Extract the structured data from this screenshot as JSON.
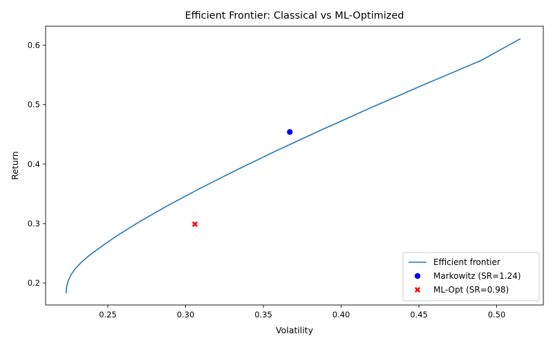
{
  "chart_data": {
    "type": "line",
    "title": "Efficient Frontier: Classical vs ML-Optimized",
    "xlabel": "Volatility",
    "ylabel": "Return",
    "xlim": [
      0.21,
      0.53
    ],
    "ylim": [
      0.163,
      0.632
    ],
    "xticks": [
      0.25,
      0.3,
      0.35,
      0.4,
      0.45,
      0.5
    ],
    "yticks": [
      0.2,
      0.3,
      0.4,
      0.5,
      0.6
    ],
    "grid": false,
    "legend_position": "lower right",
    "series": [
      {
        "name": "Efficient frontier",
        "type": "line",
        "color": "#1f77b4",
        "x": [
          0.2231,
          0.2236,
          0.2247,
          0.2266,
          0.2294,
          0.233,
          0.2374,
          0.2425,
          0.2484,
          0.255,
          0.2623,
          0.2703,
          0.279,
          0.2884,
          0.2984,
          0.3092,
          0.3206,
          0.3326,
          0.3454,
          0.3588,
          0.3729,
          0.3877,
          0.4031,
          0.4192,
          0.436,
          0.4535,
          0.4716,
          0.4905,
          0.5153
        ],
        "y": [
          0.183,
          0.195,
          0.205,
          0.215,
          0.225,
          0.235,
          0.245,
          0.255,
          0.266,
          0.278,
          0.29,
          0.303,
          0.316,
          0.33,
          0.344,
          0.359,
          0.374,
          0.39,
          0.406,
          0.423,
          0.44,
          0.458,
          0.476,
          0.495,
          0.514,
          0.534,
          0.554,
          0.575,
          0.611
        ]
      },
      {
        "name": "Markowitz (SR=1.24)",
        "type": "scatter",
        "marker": "circle",
        "color": "#0000ff",
        "x": [
          0.367
        ],
        "y": [
          0.454
        ]
      },
      {
        "name": "ML-Opt (SR=0.98)",
        "type": "scatter",
        "marker": "x",
        "color": "#ff0000",
        "x": [
          0.306
        ],
        "y": [
          0.299
        ]
      }
    ]
  }
}
